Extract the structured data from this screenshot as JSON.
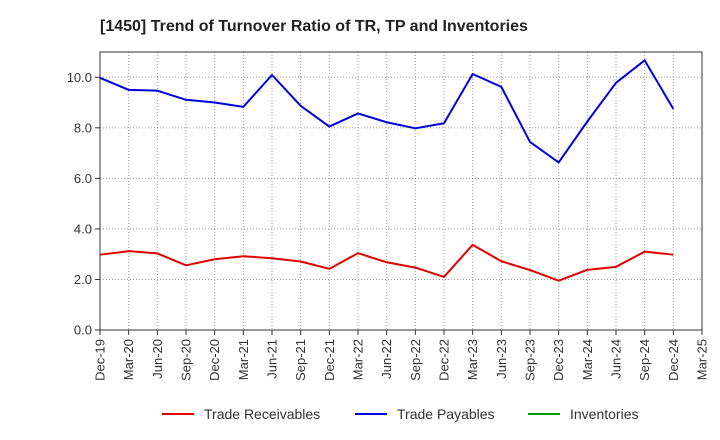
{
  "chart_data": {
    "type": "line",
    "title": "[1450]  Trend of Turnover Ratio of TR, TP and Inventories",
    "xlabel": "",
    "ylabel": "",
    "ylim": [
      0,
      11
    ],
    "yticks": [
      0,
      2,
      4,
      6,
      8,
      10
    ],
    "ytick_labels": [
      "0.0",
      "2.0",
      "4.0",
      "6.0",
      "8.0",
      "10.0"
    ],
    "x_dates": [
      "2019-12",
      "2020-03",
      "2020-06",
      "2020-09",
      "2020-12",
      "2021-03",
      "2021-06",
      "2021-09",
      "2021-12",
      "2022-03",
      "2022-06",
      "2022-09",
      "2022-12",
      "2023-03",
      "2023-06",
      "2023-09",
      "2023-12",
      "2024-03",
      "2024-06",
      "2024-09",
      "2024-12"
    ],
    "x_tick_labels": [
      "Dec-19",
      "Mar-20",
      "Jun-20",
      "Sep-20",
      "Dec-20",
      "Mar-21",
      "Jun-21",
      "Sep-21",
      "Dec-21",
      "Mar-22",
      "Jun-22",
      "Sep-22",
      "Dec-22",
      "Mar-23",
      "Jun-23",
      "Sep-23",
      "Dec-23",
      "Mar-24",
      "Jun-24",
      "Sep-24",
      "Dec-24",
      "Mar-25"
    ],
    "grid": true,
    "legend_position": "bottom",
    "series": [
      {
        "name": "Trade Receivables",
        "color": "#e00000",
        "values": [
          2.98,
          3.12,
          3.03,
          2.56,
          2.8,
          2.92,
          2.84,
          2.71,
          2.42,
          3.04,
          2.68,
          2.47,
          2.1,
          3.37,
          2.72,
          2.37,
          1.95,
          2.38,
          2.5,
          3.1,
          2.98
        ]
      },
      {
        "name": "Trade Payables",
        "color": "#0000dd",
        "values": [
          9.98,
          9.5,
          9.47,
          9.11,
          9.0,
          8.83,
          10.09,
          8.87,
          8.05,
          8.57,
          8.22,
          7.98,
          8.18,
          10.13,
          9.62,
          7.44,
          6.63,
          8.25,
          9.78,
          10.67,
          8.75
        ]
      },
      {
        "name": "Inventories",
        "color": "#009900",
        "values": []
      }
    ]
  }
}
